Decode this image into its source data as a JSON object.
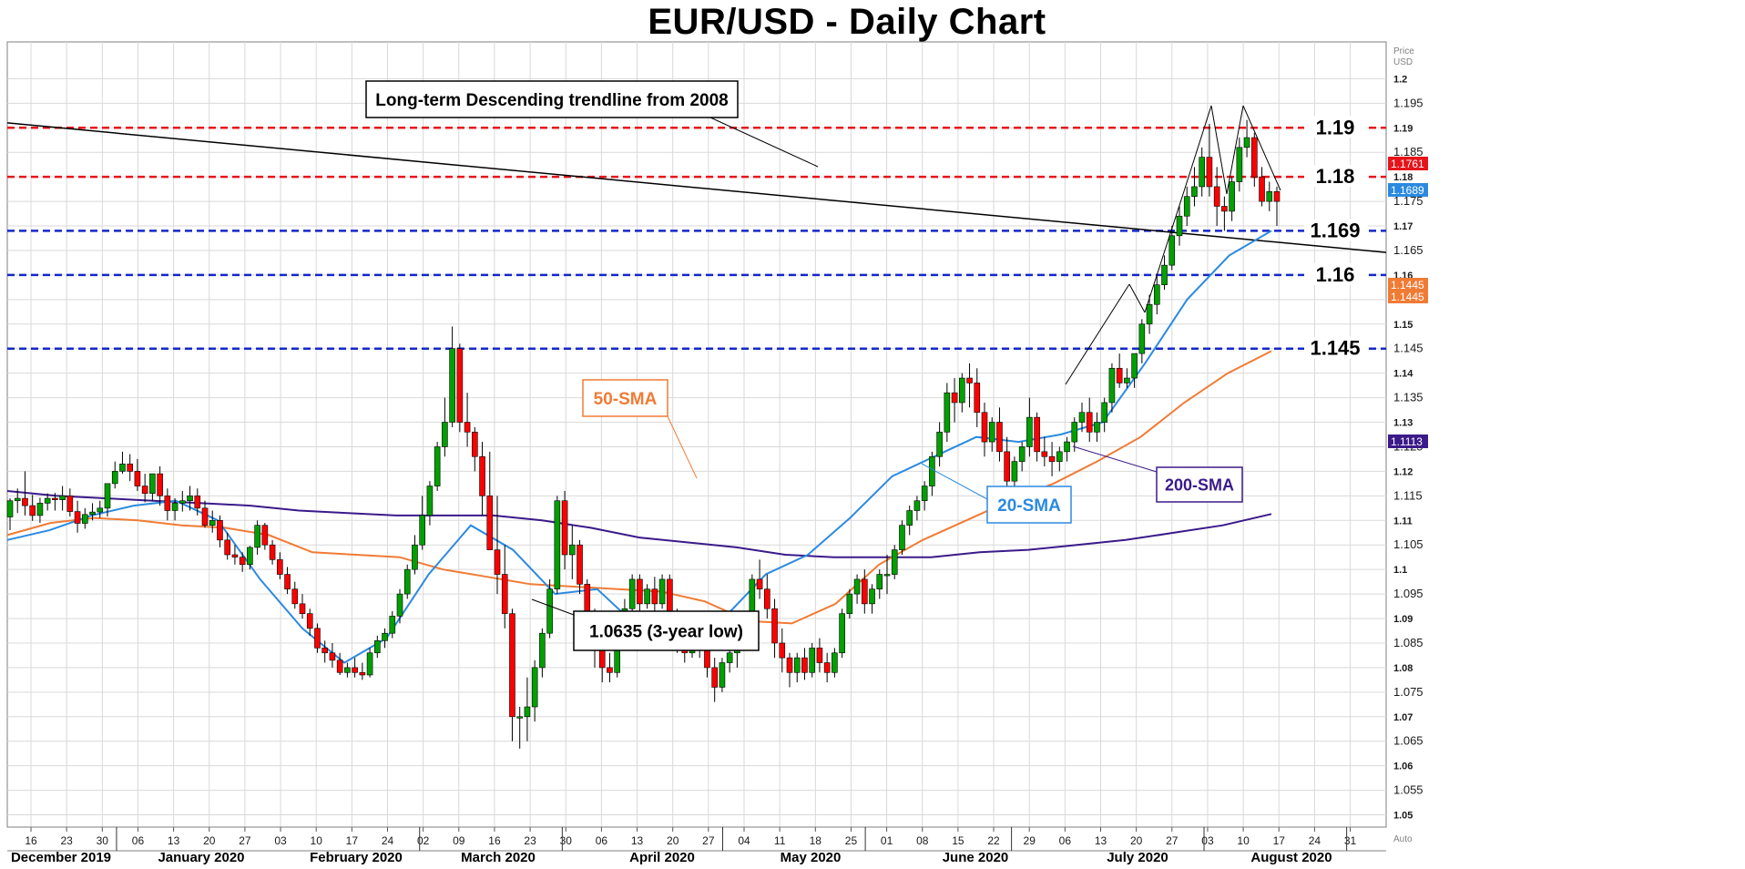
{
  "chart_data": {
    "type": "candlestick",
    "title": "EUR/USD - Daily Chart",
    "ylabel": "Price USD",
    "ylim": [
      1.0475,
      1.2075
    ],
    "grid": true,
    "y_ticks": [
      "1.05",
      "1.055",
      "1.06",
      "1.065",
      "1.07",
      "1.075",
      "1.08",
      "1.085",
      "1.09",
      "1.095",
      "1.1",
      "1.105",
      "1.11",
      "1.115",
      "1.12",
      "1.125",
      "1.13",
      "1.135",
      "1.14",
      "1.145",
      "1.15",
      "1.155",
      "1.16",
      "1.165",
      "1.17",
      "1.175",
      "1.18",
      "1.185",
      "1.19",
      "1.195",
      "1.2"
    ],
    "x_ticks": [
      "16",
      "23",
      "30",
      "06",
      "13",
      "20",
      "27",
      "03",
      "10",
      "17",
      "24",
      "02",
      "09",
      "16",
      "23",
      "30",
      "06",
      "13",
      "20",
      "27",
      "04",
      "11",
      "18",
      "25",
      "01",
      "08",
      "15",
      "22",
      "29",
      "06",
      "13",
      "20",
      "27",
      "03",
      "10",
      "17",
      "24",
      "31"
    ],
    "months": [
      "December 2019",
      "January 2020",
      "February 2020",
      "March 2020",
      "April 2020",
      "May 2020",
      "June 2020",
      "July 2020",
      "August 2020"
    ],
    "watermark": "Auto",
    "price_badges": [
      {
        "value": "1.1761",
        "color": "#e8141b"
      },
      {
        "value": "1.1689",
        "color": "#2b8ae0"
      },
      {
        "value": "1.1445",
        "color": "#f07b34"
      },
      {
        "value": "1.1445",
        "color": "#f07b34"
      },
      {
        "value": "1.1113",
        "color": "#3b1a8a"
      }
    ],
    "horizontal_levels": [
      {
        "label": "1.19",
        "value": 1.19,
        "color": "#e8141b"
      },
      {
        "label": "1.18",
        "value": 1.18,
        "color": "#e8141b"
      },
      {
        "label": "1.169",
        "value": 1.169,
        "color": "#1428c8"
      },
      {
        "label": "1.16",
        "value": 1.16,
        "color": "#1428c8"
      },
      {
        "label": "1.145",
        "value": 1.145,
        "color": "#1428c8"
      }
    ],
    "annotations": [
      {
        "text": "Long-term Descending trendline from 2008"
      },
      {
        "text": "50-SMA",
        "color": "#f07b34"
      },
      {
        "text": "20-SMA",
        "color": "#2b8ae0"
      },
      {
        "text": "200-SMA",
        "color": "#3b1a8a"
      },
      {
        "text": "1.0635 (3-year low)"
      }
    ],
    "trendline": {
      "start": 1.191,
      "end": 1.1646,
      "color": "#000000"
    },
    "candles": [
      [
        1.1107,
        1.1145,
        1.114,
        1.108
      ],
      [
        1.114,
        1.1165,
        1.1145,
        1.1115
      ],
      [
        1.1145,
        1.12,
        1.113,
        1.111
      ],
      [
        1.113,
        1.1152,
        1.111,
        1.1099
      ],
      [
        1.111,
        1.1146,
        1.1135,
        1.1095
      ],
      [
        1.1135,
        1.1155,
        1.1145,
        1.112
      ],
      [
        1.1145,
        1.1156,
        1.1142,
        1.112
      ],
      [
        1.1142,
        1.117,
        1.115,
        1.112
      ],
      [
        1.115,
        1.1165,
        1.1118,
        1.1108
      ],
      [
        1.1118,
        1.114,
        1.1094,
        1.1075
      ],
      [
        1.1094,
        1.1125,
        1.1112,
        1.1083
      ],
      [
        1.1112,
        1.1135,
        1.1117,
        1.11
      ],
      [
        1.1117,
        1.114,
        1.1125,
        1.1105
      ],
      [
        1.1125,
        1.115,
        1.1175,
        1.1108
      ],
      [
        1.1175,
        1.122,
        1.12,
        1.1165
      ],
      [
        1.12,
        1.124,
        1.1215,
        1.1195
      ],
      [
        1.1215,
        1.1235,
        1.12,
        1.118
      ],
      [
        1.12,
        1.1225,
        1.117,
        1.116
      ],
      [
        1.117,
        1.1195,
        1.1155,
        1.1137
      ],
      [
        1.1155,
        1.118,
        1.1195,
        1.114
      ],
      [
        1.1195,
        1.121,
        1.115,
        1.113
      ],
      [
        1.115,
        1.1165,
        1.112,
        1.11
      ],
      [
        1.112,
        1.1145,
        1.1135,
        1.11
      ],
      [
        1.1135,
        1.116,
        1.114,
        1.1118
      ],
      [
        1.114,
        1.117,
        1.115,
        1.112
      ],
      [
        1.115,
        1.1165,
        1.1125,
        1.111
      ],
      [
        1.1125,
        1.114,
        1.109,
        1.1085
      ],
      [
        1.109,
        1.112,
        1.11,
        1.1075
      ],
      [
        1.11,
        1.111,
        1.106,
        1.1045
      ],
      [
        1.106,
        1.1075,
        1.103,
        1.102
      ],
      [
        1.103,
        1.105,
        1.1025,
        1.101
      ],
      [
        1.1025,
        1.1035,
        1.101,
        1.0995
      ],
      [
        1.101,
        1.1048,
        1.1045,
        1.1
      ],
      [
        1.1045,
        1.11,
        1.109,
        1.103
      ],
      [
        1.109,
        1.1095,
        1.105,
        1.104
      ],
      [
        1.105,
        1.106,
        1.102,
        1.101
      ],
      [
        1.102,
        1.1035,
        1.099,
        1.098
      ],
      [
        1.099,
        1.1005,
        1.096,
        1.095
      ],
      [
        1.096,
        1.0975,
        1.093,
        1.092
      ],
      [
        1.093,
        1.095,
        1.091,
        1.09
      ],
      [
        1.091,
        1.092,
        1.088,
        1.0865
      ],
      [
        1.088,
        1.089,
        1.084,
        1.083
      ],
      [
        1.084,
        1.0855,
        1.083,
        1.081
      ],
      [
        1.083,
        1.085,
        1.0815,
        1.08
      ],
      [
        1.0815,
        1.083,
        1.079,
        1.0785
      ],
      [
        1.079,
        1.081,
        1.08,
        1.078
      ],
      [
        1.08,
        1.082,
        1.079,
        1.078
      ],
      [
        1.079,
        1.081,
        1.0785,
        1.0775
      ],
      [
        1.0785,
        1.084,
        1.083,
        1.078
      ],
      [
        1.083,
        1.0865,
        1.0855,
        1.082
      ],
      [
        1.0855,
        1.088,
        1.087,
        1.084
      ],
      [
        1.087,
        1.0915,
        1.0905,
        1.086
      ],
      [
        1.0905,
        1.096,
        1.095,
        1.089
      ],
      [
        1.095,
        1.101,
        1.1,
        1.094
      ],
      [
        1.1,
        1.107,
        1.105,
        1.099
      ],
      [
        1.105,
        1.115,
        1.111,
        1.104
      ],
      [
        1.111,
        1.118,
        1.117,
        1.109
      ],
      [
        1.117,
        1.126,
        1.125,
        1.116
      ],
      [
        1.125,
        1.135,
        1.13,
        1.123
      ],
      [
        1.13,
        1.1495,
        1.145,
        1.129
      ],
      [
        1.145,
        1.146,
        1.13,
        1.128
      ],
      [
        1.13,
        1.136,
        1.128,
        1.125
      ],
      [
        1.128,
        1.129,
        1.123,
        1.12
      ],
      [
        1.123,
        1.126,
        1.115,
        1.111
      ],
      [
        1.115,
        1.124,
        1.104,
        1.104
      ],
      [
        1.104,
        1.115,
        1.099,
        1.095
      ],
      [
        1.099,
        1.105,
        1.091,
        1.088
      ],
      [
        1.091,
        1.092,
        1.07,
        1.065
      ],
      [
        1.07,
        1.072,
        1.07,
        1.0635
      ],
      [
        1.07,
        1.078,
        1.072,
        1.065
      ],
      [
        1.072,
        1.0815,
        1.08,
        1.069
      ],
      [
        1.08,
        1.088,
        1.087,
        1.078
      ],
      [
        1.087,
        1.098,
        1.096,
        1.086
      ],
      [
        1.096,
        1.115,
        1.114,
        1.095
      ],
      [
        1.114,
        1.116,
        1.103,
        1.1
      ],
      [
        1.103,
        1.109,
        1.105,
        1.098
      ],
      [
        1.105,
        1.106,
        1.097,
        1.095
      ],
      [
        1.097,
        1.098,
        1.09,
        1.088
      ],
      [
        1.09,
        1.092,
        1.085,
        1.08
      ],
      [
        1.085,
        1.087,
        1.08,
        1.077
      ],
      [
        1.08,
        1.083,
        1.079,
        1.077
      ],
      [
        1.079,
        1.088,
        1.087,
        1.078
      ],
      [
        1.087,
        1.094,
        1.092,
        1.086
      ],
      [
        1.092,
        1.099,
        1.098,
        1.09
      ],
      [
        1.098,
        1.099,
        1.093,
        1.09
      ],
      [
        1.093,
        1.097,
        1.096,
        1.092
      ],
      [
        1.096,
        1.0985,
        1.093,
        1.09
      ],
      [
        1.093,
        1.099,
        1.098,
        1.092
      ],
      [
        1.098,
        1.099,
        1.087,
        1.086
      ],
      [
        1.087,
        1.092,
        1.086,
        1.083
      ],
      [
        1.086,
        1.088,
        1.083,
        1.081
      ],
      [
        1.083,
        1.088,
        1.086,
        1.082
      ],
      [
        1.086,
        1.089,
        1.084,
        1.082
      ],
      [
        1.084,
        1.087,
        1.08,
        1.078
      ],
      [
        1.08,
        1.082,
        1.076,
        1.073
      ],
      [
        1.076,
        1.082,
        1.081,
        1.075
      ],
      [
        1.081,
        1.084,
        1.083,
        1.079
      ],
      [
        1.083,
        1.088,
        1.087,
        1.08
      ],
      [
        1.087,
        1.09,
        1.088,
        1.085
      ],
      [
        1.088,
        1.099,
        1.098,
        1.087
      ],
      [
        1.098,
        1.102,
        1.096,
        1.094
      ],
      [
        1.096,
        1.099,
        1.092,
        1.09
      ],
      [
        1.092,
        1.094,
        1.085,
        1.082
      ],
      [
        1.085,
        1.088,
        1.082,
        1.079
      ],
      [
        1.082,
        1.083,
        1.079,
        1.076
      ],
      [
        1.079,
        1.083,
        1.082,
        1.077
      ],
      [
        1.082,
        1.084,
        1.079,
        1.0775
      ],
      [
        1.079,
        1.085,
        1.084,
        1.078
      ],
      [
        1.084,
        1.086,
        1.081,
        1.079
      ],
      [
        1.081,
        1.083,
        1.079,
        1.077
      ],
      [
        1.079,
        1.084,
        1.083,
        1.078
      ],
      [
        1.083,
        1.092,
        1.091,
        1.082
      ],
      [
        1.091,
        1.096,
        1.095,
        1.09
      ],
      [
        1.095,
        1.099,
        1.098,
        1.093
      ],
      [
        1.098,
        1.1,
        1.093,
        1.091
      ],
      [
        1.093,
        1.097,
        1.096,
        1.091
      ],
      [
        1.096,
        1.1,
        1.099,
        1.094
      ],
      [
        1.099,
        1.103,
        1.099,
        1.095
      ],
      [
        1.099,
        1.105,
        1.104,
        1.098
      ],
      [
        1.104,
        1.11,
        1.109,
        1.103
      ],
      [
        1.109,
        1.113,
        1.112,
        1.107
      ],
      [
        1.112,
        1.115,
        1.114,
        1.11
      ],
      [
        1.114,
        1.118,
        1.117,
        1.112
      ],
      [
        1.117,
        1.124,
        1.123,
        1.115
      ],
      [
        1.123,
        1.13,
        1.128,
        1.121
      ],
      [
        1.128,
        1.138,
        1.136,
        1.126
      ],
      [
        1.136,
        1.139,
        1.134,
        1.13
      ],
      [
        1.134,
        1.14,
        1.139,
        1.132
      ],
      [
        1.139,
        1.142,
        1.138,
        1.133
      ],
      [
        1.138,
        1.141,
        1.132,
        1.129
      ],
      [
        1.132,
        1.134,
        1.126,
        1.123
      ],
      [
        1.126,
        1.131,
        1.13,
        1.124
      ],
      [
        1.13,
        1.133,
        1.124,
        1.122
      ],
      [
        1.124,
        1.127,
        1.118,
        1.117
      ],
      [
        1.118,
        1.123,
        1.122,
        1.117
      ],
      [
        1.122,
        1.126,
        1.125,
        1.12
      ],
      [
        1.125,
        1.135,
        1.131,
        1.123
      ],
      [
        1.131,
        1.132,
        1.124,
        1.122
      ],
      [
        1.124,
        1.127,
        1.123,
        1.121
      ],
      [
        1.123,
        1.126,
        1.122,
        1.119
      ],
      [
        1.122,
        1.125,
        1.124,
        1.12
      ],
      [
        1.124,
        1.127,
        1.126,
        1.122
      ],
      [
        1.126,
        1.131,
        1.13,
        1.124
      ],
      [
        1.13,
        1.134,
        1.132,
        1.128
      ],
      [
        1.132,
        1.135,
        1.128,
        1.126
      ],
      [
        1.128,
        1.132,
        1.13,
        1.126
      ],
      [
        1.13,
        1.135,
        1.134,
        1.128
      ],
      [
        1.134,
        1.142,
        1.141,
        1.132
      ],
      [
        1.141,
        1.144,
        1.138,
        1.137
      ],
      [
        1.138,
        1.141,
        1.139,
        1.137
      ],
      [
        1.139,
        1.144,
        1.144,
        1.137
      ],
      [
        1.144,
        1.151,
        1.15,
        1.142
      ],
      [
        1.15,
        1.156,
        1.154,
        1.148
      ],
      [
        1.154,
        1.16,
        1.158,
        1.152
      ],
      [
        1.158,
        1.164,
        1.162,
        1.157
      ],
      [
        1.162,
        1.17,
        1.168,
        1.161
      ],
      [
        1.168,
        1.174,
        1.172,
        1.166
      ],
      [
        1.172,
        1.178,
        1.176,
        1.17
      ],
      [
        1.176,
        1.182,
        1.178,
        1.174
      ],
      [
        1.178,
        1.186,
        1.184,
        1.176
      ],
      [
        1.184,
        1.1908,
        1.178,
        1.176
      ],
      [
        1.178,
        1.182,
        1.174,
        1.17
      ],
      [
        1.174,
        1.176,
        1.173,
        1.169
      ],
      [
        1.173,
        1.18,
        1.179,
        1.171
      ],
      [
        1.179,
        1.188,
        1.186,
        1.177
      ],
      [
        1.186,
        1.1916,
        1.188,
        1.184
      ],
      [
        1.188,
        1.189,
        1.18,
        1.178
      ],
      [
        1.18,
        1.182,
        1.175,
        1.174
      ],
      [
        1.175,
        1.179,
        1.177,
        1.173
      ],
      [
        1.177,
        1.178,
        1.175,
        1.17
      ]
    ],
    "sma20": [
      1.106,
      1.108,
      1.111,
      1.113,
      1.114,
      1.11,
      1.098,
      1.088,
      1.081,
      1.086,
      1.099,
      1.109,
      1.104,
      1.095,
      1.096,
      1.088,
      1.087,
      1.09,
      1.099,
      1.103,
      1.1105,
      1.119,
      1.123,
      1.127,
      1.126,
      1.1275,
      1.13,
      1.142,
      1.155,
      1.164,
      1.169
    ],
    "sma50": [
      1.107,
      1.1095,
      1.1105,
      1.11,
      1.109,
      1.1085,
      1.107,
      1.1035,
      1.103,
      1.1025,
      1.1,
      1.0985,
      1.097,
      1.0965,
      1.096,
      1.0955,
      1.0935,
      1.0895,
      1.089,
      1.093,
      1.101,
      1.106,
      1.11,
      1.114,
      1.1175,
      1.122,
      1.127,
      1.134,
      1.14,
      1.1445
    ],
    "sma200": [
      1.116,
      1.115,
      1.1145,
      1.114,
      1.1135,
      1.113,
      1.112,
      1.1115,
      1.111,
      1.111,
      1.111,
      1.11,
      1.1085,
      1.1065,
      1.1055,
      1.1045,
      1.103,
      1.1025,
      1.1025,
      1.1025,
      1.1035,
      1.104,
      1.105,
      1.106,
      1.1075,
      1.109,
      1.1113
    ]
  }
}
